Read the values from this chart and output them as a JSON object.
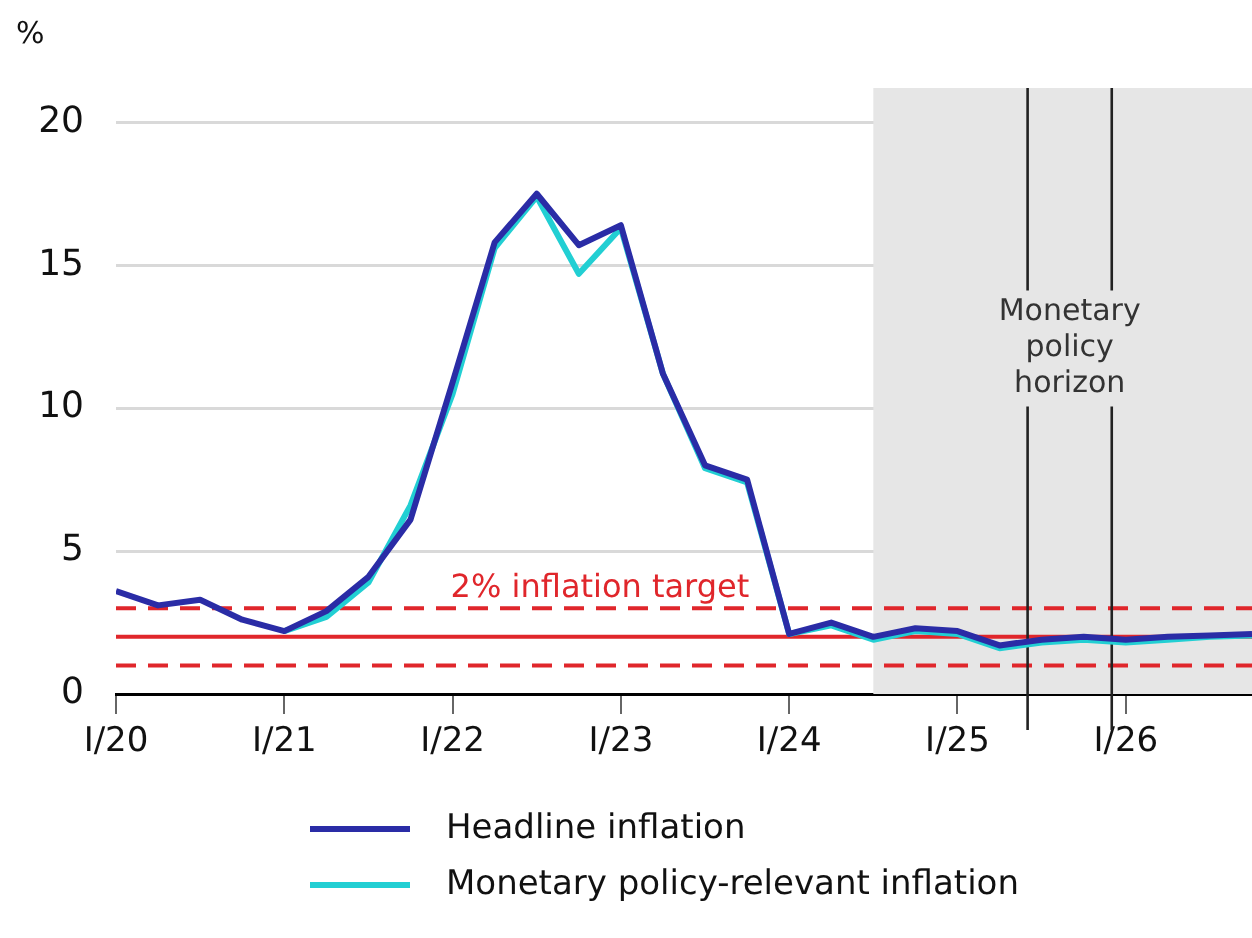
{
  "chart_data": {
    "type": "line",
    "ylabel": "%",
    "x": [
      "2020-01",
      "2020-04",
      "2020-07",
      "2020-10",
      "2021-01",
      "2021-04",
      "2021-07",
      "2021-10",
      "2022-01",
      "2022-04",
      "2022-07",
      "2022-10",
      "2023-01",
      "2023-04",
      "2023-07",
      "2023-10",
      "2024-01",
      "2024-04",
      "2024-07",
      "2024-10",
      "2025-01",
      "2025-04",
      "2025-07",
      "2025-10",
      "2026-01",
      "2026-04",
      "2026-07",
      "2026-10"
    ],
    "series": [
      {
        "name": "Headline inflation",
        "color": "#2a2ca6",
        "values": [
          3.6,
          3.1,
          3.3,
          2.6,
          2.2,
          2.9,
          4.1,
          6.1,
          10.9,
          15.8,
          17.5,
          15.7,
          16.4,
          11.2,
          8.0,
          7.5,
          2.1,
          2.5,
          2.0,
          2.3,
          2.2,
          1.7,
          1.9,
          2.0,
          1.9,
          2.0,
          2.05,
          2.1
        ]
      },
      {
        "name": "Monetary policy-relevant inflation",
        "color": "#22cfd3",
        "values": [
          null,
          null,
          null,
          null,
          2.2,
          2.7,
          3.9,
          6.6,
          10.5,
          15.6,
          17.4,
          14.7,
          16.3,
          11.2,
          7.9,
          7.4,
          2.1,
          2.4,
          1.9,
          2.2,
          2.1,
          1.6,
          1.8,
          1.9,
          1.8,
          1.9,
          2.0,
          2.05
        ]
      }
    ],
    "xlim": [
      "2020-01",
      "2026-10"
    ],
    "xticks": [
      {
        "value": "2020-01",
        "label": "I/20"
      },
      {
        "value": "2021-01",
        "label": "I/21"
      },
      {
        "value": "2022-01",
        "label": "I/22"
      },
      {
        "value": "2023-01",
        "label": "I/23"
      },
      {
        "value": "2024-01",
        "label": "I/24"
      },
      {
        "value": "2025-01",
        "label": "I/25"
      },
      {
        "value": "2026-01",
        "label": "I/26"
      }
    ],
    "ylim": [
      0,
      21.2
    ],
    "yticks": [
      0,
      5,
      10,
      15,
      20
    ],
    "grid": "y",
    "legend": "bottom",
    "marker": "none",
    "line_style": "solid",
    "bands": [
      {
        "axis": "x",
        "from": "2024-07",
        "to": "2026-10",
        "color": "#e6e6e6"
      }
    ],
    "ref_lines": [
      {
        "axis": "y",
        "value": 2,
        "label": "2% inflation target",
        "color": "#e0262b",
        "line_style": "solid"
      },
      {
        "axis": "y",
        "value": 3,
        "color": "#e0262b",
        "line_style": "dashed"
      },
      {
        "axis": "y",
        "value": 1,
        "color": "#e0262b",
        "line_style": "dashed"
      },
      {
        "axis": "x",
        "value": "2025-06",
        "color": "#222222",
        "line_style": "solid"
      },
      {
        "axis": "x",
        "value": "2025-12",
        "color": "#222222",
        "line_style": "solid"
      }
    ],
    "annotations": [
      "Monetary policy horizon"
    ]
  }
}
